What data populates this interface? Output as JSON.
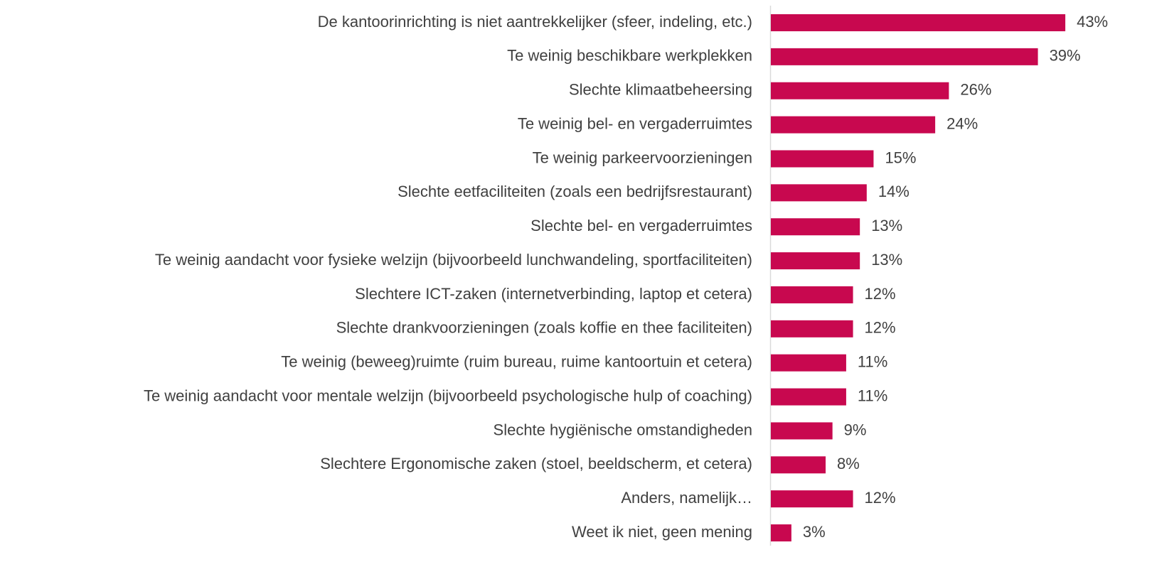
{
  "chart_data": {
    "type": "bar",
    "orientation": "horizontal",
    "color": "#c8084f",
    "categories": [
      "De kantoorinrichting is niet aantrekkelijker (sfeer, indeling, etc.)",
      "Te weinig beschikbare werkplekken",
      "Slechte klimaatbeheersing",
      "Te weinig bel- en vergaderruimtes",
      "Te weinig parkeervoorzieningen",
      "Slechte eetfaciliteiten (zoals een bedrijfsrestaurant)",
      "Slechte bel- en vergaderruimtes",
      "Te weinig aandacht voor fysieke welzijn (bijvoorbeeld lunchwandeling, sportfaciliteiten)",
      "Slechtere ICT-zaken (internetverbinding, laptop et cetera)",
      "Slechte drankvoorzieningen (zoals koffie en thee faciliteiten)",
      "Te weinig (beweeg)ruimte (ruim bureau, ruime kantoortuin et cetera)",
      "Te weinig aandacht voor mentale welzijn (bijvoorbeeld psychologische hulp of coaching)",
      "Slechte hygiënische omstandigheden",
      "Slechtere Ergonomische zaken (stoel, beeldscherm, et cetera)",
      "Anders, namelijk…",
      "Weet ik niet, geen mening"
    ],
    "values": [
      43,
      39,
      26,
      24,
      15,
      14,
      13,
      13,
      12,
      12,
      11,
      11,
      9,
      8,
      12,
      3
    ],
    "value_labels": [
      "43%",
      "39%",
      "26%",
      "24%",
      "15%",
      "14%",
      "13%",
      "13%",
      "12%",
      "12%",
      "11%",
      "11%",
      "9%",
      "8%",
      "12%",
      "3%"
    ]
  }
}
